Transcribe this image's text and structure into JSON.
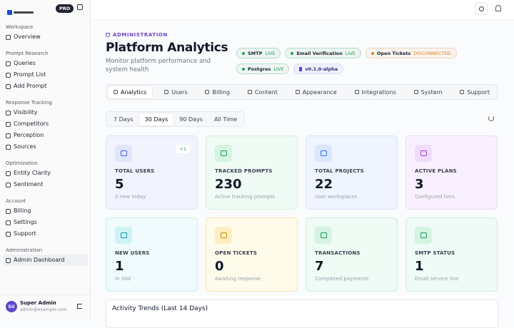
{
  "sidebar": {
    "badge": "PRO",
    "sections": [
      {
        "title": "Workspace",
        "items": [
          "Overview"
        ]
      },
      {
        "title": "Prompt Research",
        "items": [
          "Queries",
          "Prompt List",
          "Add Prompt"
        ]
      },
      {
        "title": "Response Tracking",
        "items": [
          "Visibility",
          "Competitors",
          "Perception",
          "Sources"
        ]
      },
      {
        "title": "Optimization",
        "items": [
          "Entity Clarity",
          "Sentiment"
        ]
      },
      {
        "title": "Account",
        "items": [
          "Billing",
          "Settings",
          "Support"
        ]
      },
      {
        "title": "Administration",
        "items": [
          "Admin Dashboard"
        ]
      }
    ],
    "user": {
      "initials": "SU",
      "name": "Super Admin",
      "email": "admin@example.com"
    }
  },
  "header": {
    "eyebrow": "ADMINISTRATION",
    "title": "Platform Analytics",
    "subtitle": "Monitor platform performance and system health"
  },
  "status_badges": [
    {
      "name": "SMTP",
      "status": "LIVE",
      "color": "#1f9d5c"
    },
    {
      "name": "Email Verification",
      "status": "LIVE",
      "color": "#1f9d5c"
    },
    {
      "name": "Open Tickets",
      "status": "DISCONNECTED",
      "color": "#d9861a"
    },
    {
      "name": "Postgres",
      "status": "LIVE",
      "color": "#1f9d5c"
    }
  ],
  "version": "v0.1.0-alpha",
  "tabs": [
    "Analytics",
    "Users",
    "Billing",
    "Content",
    "Appearance",
    "Integrations",
    "System",
    "Support"
  ],
  "ranges": [
    "7 Days",
    "30 Days",
    "90 Days",
    "All Time"
  ],
  "cards": [
    {
      "label": "TOTAL USERS",
      "value": 5,
      "note": "0 new today",
      "badge": "+1"
    },
    {
      "label": "TRACKED PROMPTS",
      "value": 230,
      "note": "Active tracking prompts"
    },
    {
      "label": "TOTAL PROJECTS",
      "value": 22,
      "note": "User workspaces"
    },
    {
      "label": "ACTIVE PLANS",
      "value": 3,
      "note": "Configured tiers"
    },
    {
      "label": "NEW USERS",
      "value": 1,
      "note": "In 30d"
    },
    {
      "label": "OPEN TICKETS",
      "value": 0,
      "note": "Awaiting response"
    },
    {
      "label": "TRANSACTIONS",
      "value": 7,
      "note": "Completed payments"
    },
    {
      "label": "SMTP STATUS",
      "value": 1,
      "note": "Email service live"
    }
  ],
  "activity": {
    "title": "Activity Trends (Last 14 Days)"
  }
}
